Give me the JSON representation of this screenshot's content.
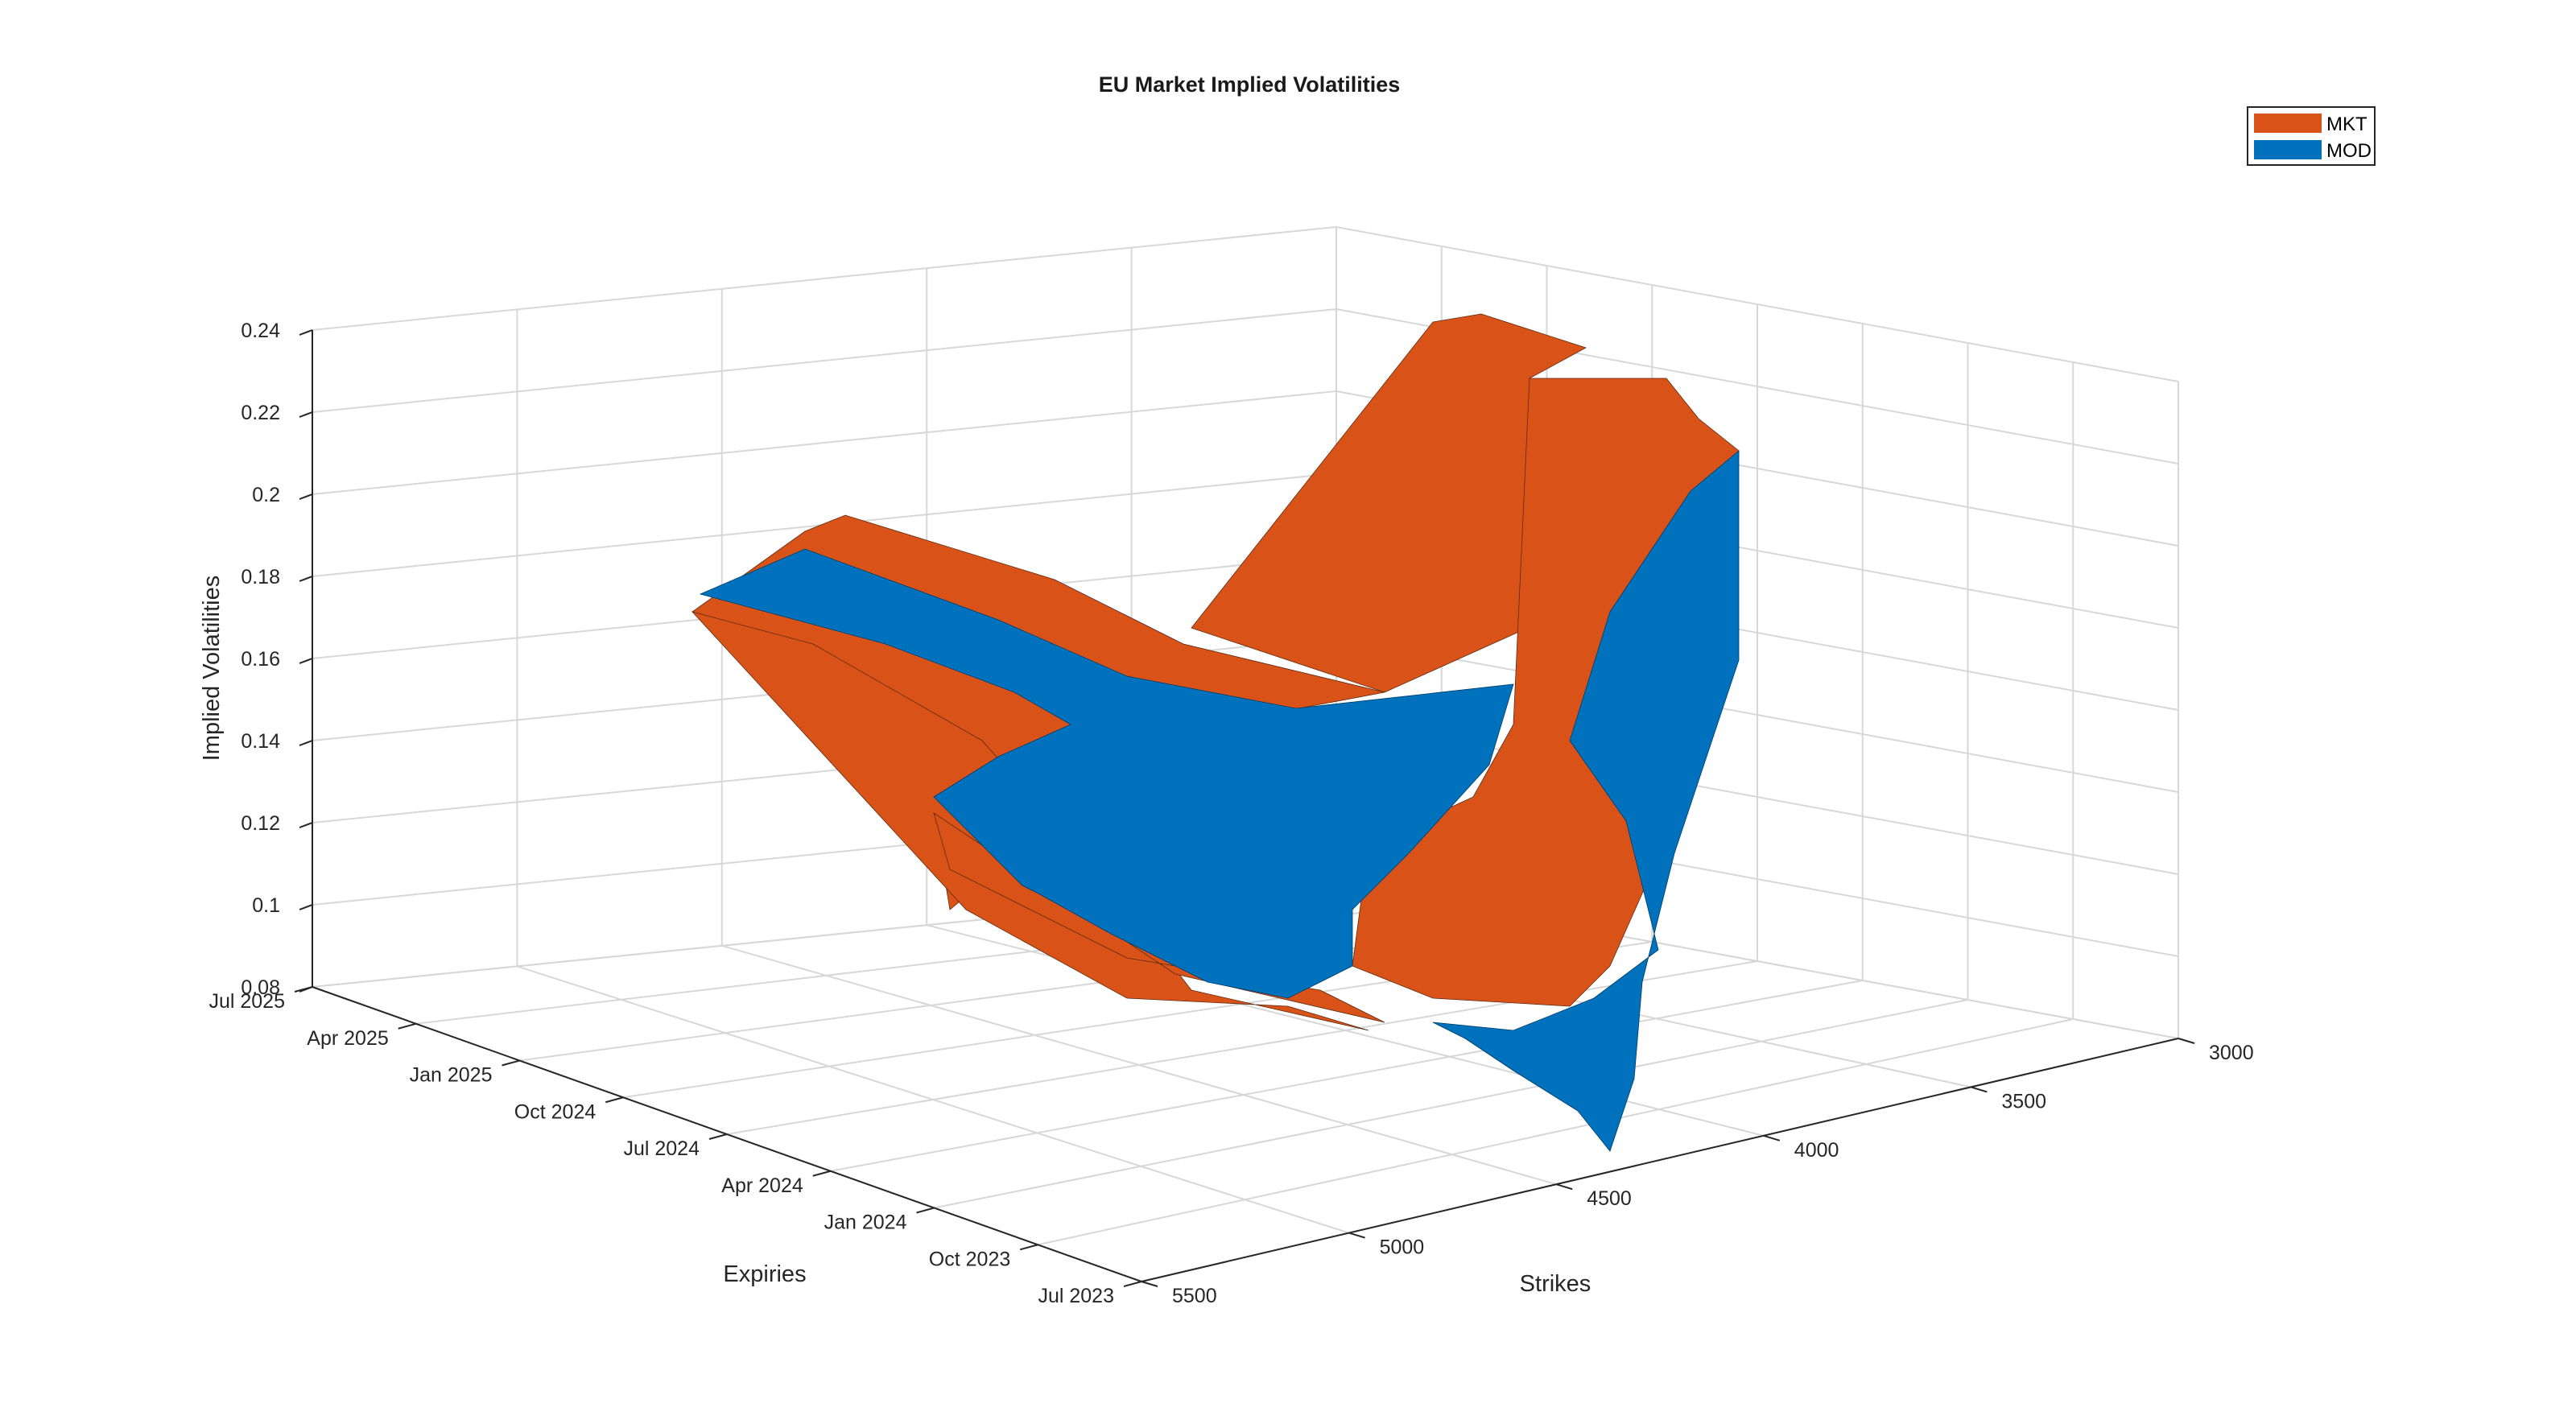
{
  "colors": {
    "mkt": "#D95319",
    "mod": "#0072BD",
    "grid": "#d7d7d7",
    "axis": "#262626"
  },
  "chart_data": {
    "type": "surface3d",
    "title": "EU Market Implied Volatilities",
    "xlabel": "Strikes",
    "ylabel": "Expiries",
    "zlabel": "Implied Volatilities",
    "x_ticks": [
      "3000",
      "3500",
      "4000",
      "4500",
      "5000",
      "5500"
    ],
    "y_ticks": [
      "Jul 2023",
      "Oct 2023",
      "Jan 2024",
      "Apr 2024",
      "Jul 2024",
      "Oct 2024",
      "Jan 2025",
      "Apr 2025",
      "Jul 2025"
    ],
    "z_ticks": [
      "0.08",
      "0.1",
      "0.12",
      "0.14",
      "0.16",
      "0.18",
      "0.2",
      "0.22",
      "0.24"
    ],
    "zlim": [
      0.08,
      0.24
    ],
    "grid": true,
    "legend_position": "top-right",
    "series": [
      {
        "name": "MKT",
        "color": "#D95319"
      },
      {
        "name": "MOD",
        "color": "#0072BD"
      }
    ]
  }
}
